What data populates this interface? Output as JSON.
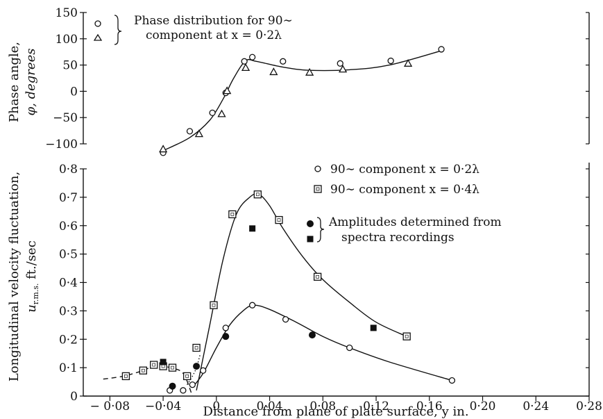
{
  "chart_data": [
    {
      "type": "scatter",
      "panel": "top",
      "ylabel_line1": "Phase angle,",
      "ylabel_line2": "φ, degrees",
      "ylim": [
        -100,
        150
      ],
      "yticks": [
        "150",
        "100",
        "50",
        "0",
        "−50",
        "−100"
      ],
      "xlim": [
        -0.1,
        0.28
      ],
      "legend": {
        "position": "top-left",
        "line1": "Phase distribution for 90∼",
        "line2": "component at x = 0·2λ",
        "entries": [
          "circle",
          "triangle"
        ]
      },
      "series": [
        {
          "marker": "circle",
          "points": [
            {
              "x": -0.04,
              "y": -117
            },
            {
              "x": -0.02,
              "y": -76
            },
            {
              "x": -0.003,
              "y": -41
            },
            {
              "x": 0.007,
              "y": -3
            },
            {
              "x": 0.021,
              "y": 57
            },
            {
              "x": 0.027,
              "y": 65
            },
            {
              "x": 0.05,
              "y": 57
            },
            {
              "x": 0.093,
              "y": 53
            },
            {
              "x": 0.131,
              "y": 58
            },
            {
              "x": 0.169,
              "y": 80
            }
          ]
        },
        {
          "marker": "triangle",
          "points": [
            {
              "x": -0.04,
              "y": -110
            },
            {
              "x": -0.013,
              "y": -81
            },
            {
              "x": 0.004,
              "y": -43
            },
            {
              "x": 0.008,
              "y": 1
            },
            {
              "x": 0.022,
              "y": 45
            },
            {
              "x": 0.043,
              "y": 37
            },
            {
              "x": 0.07,
              "y": 36
            },
            {
              "x": 0.095,
              "y": 42
            },
            {
              "x": 0.144,
              "y": 53
            }
          ]
        }
      ],
      "fit_curve": [
        {
          "x": -0.04,
          "y": -113
        },
        {
          "x": -0.02,
          "y": -88
        },
        {
          "x": -0.005,
          "y": -55
        },
        {
          "x": 0.005,
          "y": -15
        },
        {
          "x": 0.013,
          "y": 25
        },
        {
          "x": 0.022,
          "y": 58
        },
        {
          "x": 0.03,
          "y": 57
        },
        {
          "x": 0.05,
          "y": 46
        },
        {
          "x": 0.07,
          "y": 40
        },
        {
          "x": 0.1,
          "y": 41
        },
        {
          "x": 0.13,
          "y": 50
        },
        {
          "x": 0.17,
          "y": 78
        }
      ]
    },
    {
      "type": "scatter",
      "panel": "bottom",
      "ylabel_line1": "Longitudinal velocity fluctuation,",
      "ylabel_line2": "u r.m.s. ft./sec",
      "xlabel": "Distance from plane of plate surface, y in.",
      "ylim": [
        0,
        0.8
      ],
      "yticks": [
        "0·8",
        "0·7",
        "0·6",
        "0·5",
        "0·4",
        "0·3",
        "0·2",
        "0·1",
        "0"
      ],
      "xlim": [
        -0.1,
        0.28
      ],
      "xticks": [
        {
          "value": -0.08,
          "label": "− 0·08"
        },
        {
          "value": -0.04,
          "label": "−0·04"
        },
        {
          "value": 0,
          "label": "0"
        },
        {
          "value": 0.04,
          "label": "0·04"
        },
        {
          "value": 0.08,
          "label": "0·08"
        },
        {
          "value": 0.12,
          "label": "0·12"
        },
        {
          "value": 0.16,
          "label": "0·16"
        },
        {
          "value": 0.2,
          "label": "0·20"
        },
        {
          "value": 0.24,
          "label": "0·24"
        },
        {
          "value": 0.28,
          "label": "0·28"
        }
      ],
      "legend": {
        "position": "right",
        "circle_label": "90∼ component x = 0·2λ",
        "square_label": "90∼ component x = 0·4λ",
        "solid_label_line1": "Amplitudes determined from",
        "solid_label_line2": "spectra recordings"
      },
      "series": [
        {
          "name": "90∼ component x = 0·2λ",
          "marker": "open-circle",
          "points": [
            {
              "x": -0.035,
              "y": 0.02
            },
            {
              "x": -0.025,
              "y": 0.02
            },
            {
              "x": -0.018,
              "y": 0.04
            },
            {
              "x": -0.01,
              "y": 0.09
            },
            {
              "x": 0.007,
              "y": 0.24
            },
            {
              "x": 0.027,
              "y": 0.32
            },
            {
              "x": 0.052,
              "y": 0.27
            },
            {
              "x": 0.1,
              "y": 0.17
            },
            {
              "x": 0.177,
              "y": 0.055
            }
          ],
          "fit_curve": [
            {
              "x": -0.018,
              "y": 0.03
            },
            {
              "x": -0.01,
              "y": 0.08
            },
            {
              "x": 0.0,
              "y": 0.17
            },
            {
              "x": 0.01,
              "y": 0.25
            },
            {
              "x": 0.02,
              "y": 0.3
            },
            {
              "x": 0.028,
              "y": 0.32
            },
            {
              "x": 0.04,
              "y": 0.305
            },
            {
              "x": 0.06,
              "y": 0.26
            },
            {
              "x": 0.08,
              "y": 0.21
            },
            {
              "x": 0.1,
              "y": 0.17
            },
            {
              "x": 0.13,
              "y": 0.12
            },
            {
              "x": 0.177,
              "y": 0.055
            }
          ]
        },
        {
          "name": "90∼ component x = 0·4λ",
          "marker": "open-square",
          "points": [
            {
              "x": -0.068,
              "y": 0.07
            },
            {
              "x": -0.055,
              "y": 0.09
            },
            {
              "x": -0.047,
              "y": 0.11
            },
            {
              "x": -0.04,
              "y": 0.105
            },
            {
              "x": -0.033,
              "y": 0.1
            },
            {
              "x": -0.022,
              "y": 0.07
            },
            {
              "x": -0.015,
              "y": 0.17
            },
            {
              "x": -0.002,
              "y": 0.32
            },
            {
              "x": 0.012,
              "y": 0.64
            },
            {
              "x": 0.031,
              "y": 0.71
            },
            {
              "x": 0.047,
              "y": 0.62
            },
            {
              "x": 0.076,
              "y": 0.42
            },
            {
              "x": 0.143,
              "y": 0.21
            }
          ],
          "fit_curve": [
            {
              "x": -0.015,
              "y": 0.02
            },
            {
              "x": -0.005,
              "y": 0.25
            },
            {
              "x": 0.005,
              "y": 0.48
            },
            {
              "x": 0.015,
              "y": 0.64
            },
            {
              "x": 0.025,
              "y": 0.7
            },
            {
              "x": 0.032,
              "y": 0.71
            },
            {
              "x": 0.04,
              "y": 0.67
            },
            {
              "x": 0.05,
              "y": 0.59
            },
            {
              "x": 0.065,
              "y": 0.49
            },
            {
              "x": 0.08,
              "y": 0.41
            },
            {
              "x": 0.1,
              "y": 0.33
            },
            {
              "x": 0.12,
              "y": 0.26
            },
            {
              "x": 0.143,
              "y": 0.21
            }
          ],
          "dashed_curve": [
            {
              "x": -0.085,
              "y": 0.06
            },
            {
              "x": -0.07,
              "y": 0.07
            },
            {
              "x": -0.055,
              "y": 0.09
            },
            {
              "x": -0.045,
              "y": 0.11
            },
            {
              "x": -0.035,
              "y": 0.1
            },
            {
              "x": -0.025,
              "y": 0.08
            },
            {
              "x": -0.018,
              "y": 0.0
            }
          ],
          "dotted_curve": [
            {
              "x": -0.022,
              "y": 0.04
            },
            {
              "x": -0.018,
              "y": 0.07
            },
            {
              "x": -0.015,
              "y": 0.1
            },
            {
              "x": -0.012,
              "y": 0.15
            }
          ]
        },
        {
          "name": "Amplitudes determined from spectra recordings",
          "marker": "solid-circle",
          "points": [
            {
              "x": -0.033,
              "y": 0.035
            },
            {
              "x": -0.015,
              "y": 0.105
            },
            {
              "x": 0.007,
              "y": 0.21
            },
            {
              "x": 0.072,
              "y": 0.215
            }
          ]
        },
        {
          "name": "Amplitudes determined from spectra recordings",
          "marker": "solid-square",
          "points": [
            {
              "x": -0.04,
              "y": 0.12
            },
            {
              "x": 0.027,
              "y": 0.59
            },
            {
              "x": 0.118,
              "y": 0.24
            }
          ]
        }
      ]
    }
  ]
}
